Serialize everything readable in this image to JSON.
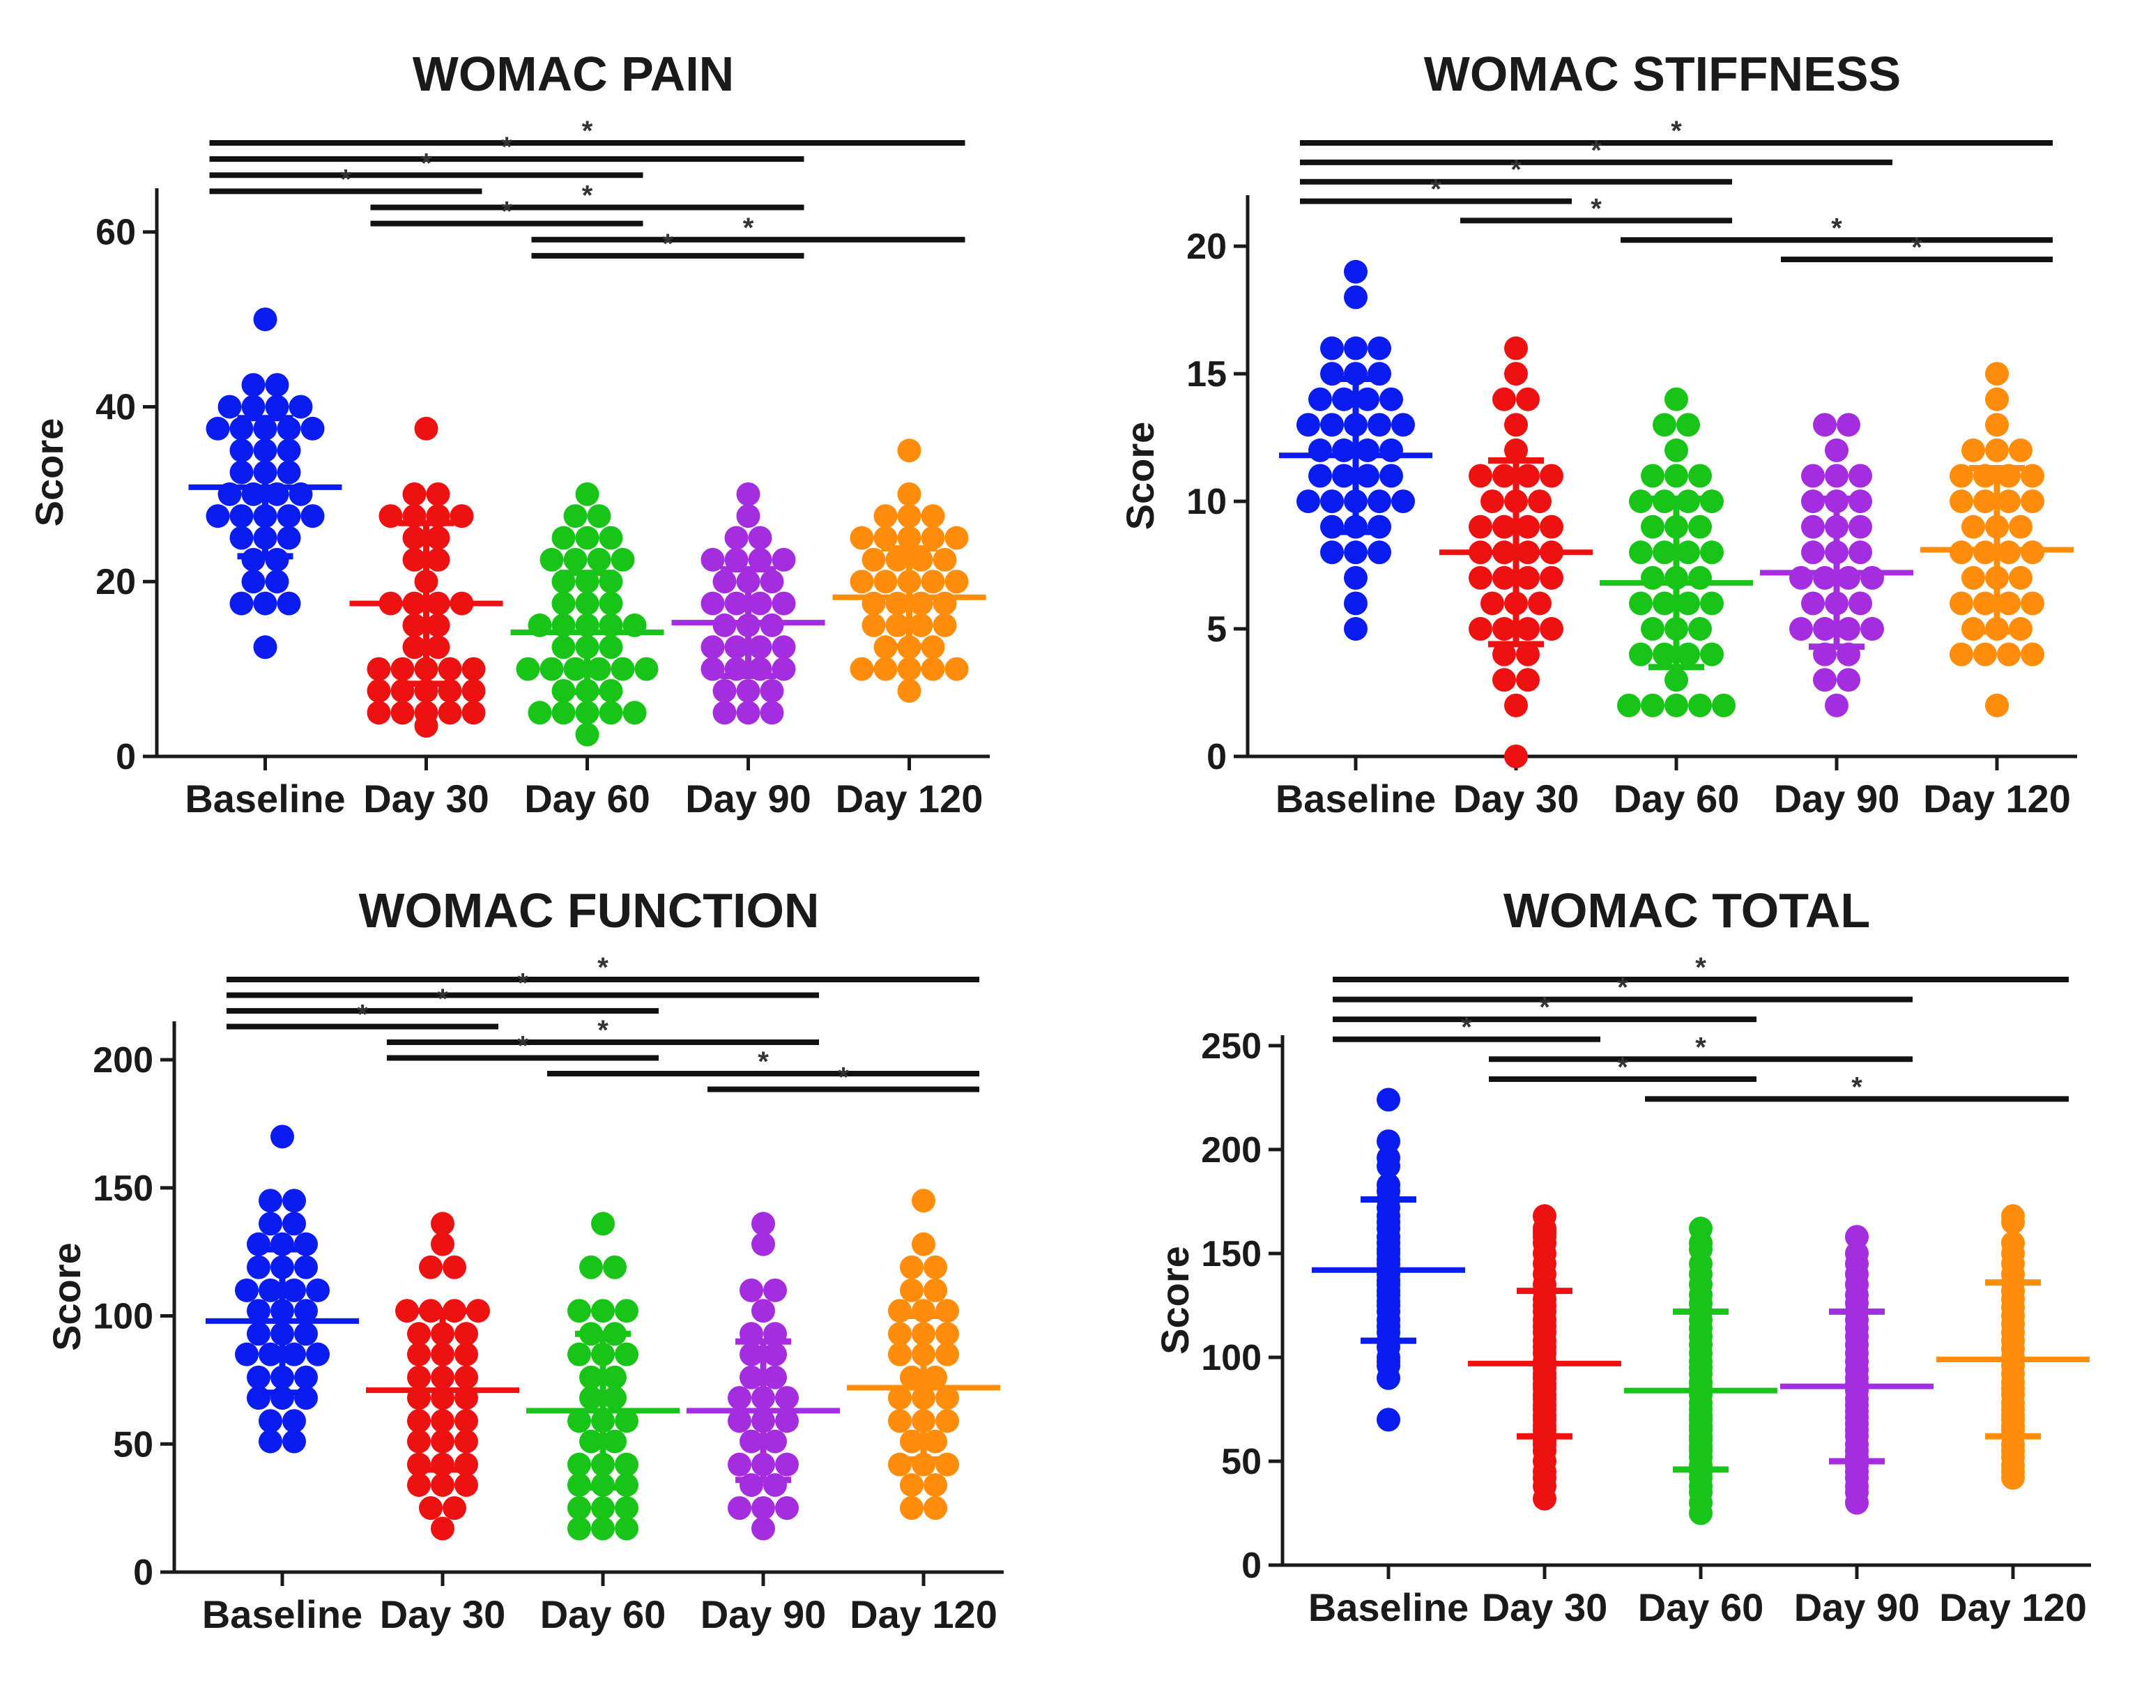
{
  "chart_data": [
    {
      "type": "scatter",
      "title": "WOMAC PAIN",
      "ylabel": "Score",
      "categories": [
        "Baseline",
        "Day 30",
        "Day 60",
        "Day 90",
        "Day 120"
      ],
      "ylim": [
        0,
        65
      ],
      "yticks": [
        "0",
        "20",
        "40",
        "60"
      ],
      "colors": [
        "#0a1cf0",
        "#ee1111",
        "#19c419",
        "#a52de0",
        "#ff8c0a"
      ],
      "means": [
        30.8,
        17.5,
        14.2,
        15.3,
        18.2
      ],
      "sd": [
        7.9,
        9.2,
        6.8,
        6.1,
        5.6
      ],
      "points": [
        [
          50,
          42.5,
          42.5,
          40,
          40,
          40,
          40,
          37.5,
          37.5,
          37.5,
          37.5,
          37.5,
          35,
          35,
          35,
          32.5,
          32.5,
          32.5,
          30,
          30,
          30,
          30,
          27.5,
          27.5,
          27.5,
          27.5,
          27.5,
          25,
          25,
          25,
          22.5,
          22.5,
          20,
          20,
          17.5,
          17.5,
          17.5,
          12.5
        ],
        [
          37.5,
          30,
          30,
          27.5,
          27.5,
          27.5,
          27.5,
          25,
          25,
          22.5,
          22.5,
          20,
          17.5,
          17.5,
          17.5,
          17.5,
          15,
          15,
          12.5,
          12.5,
          10,
          10,
          10,
          10,
          10,
          7.5,
          7.5,
          7.5,
          7.5,
          7.5,
          5,
          5,
          5,
          5,
          5,
          3.5
        ],
        [
          30,
          27.5,
          27.5,
          25,
          25,
          25,
          22.5,
          22.5,
          22.5,
          22.5,
          20,
          20,
          20,
          17.5,
          17.5,
          17.5,
          15,
          15,
          15,
          15,
          15,
          12.5,
          12.5,
          12.5,
          10,
          10,
          10,
          10,
          10,
          10,
          7.5,
          7.5,
          7.5,
          5,
          5,
          5,
          5,
          5,
          2.5
        ],
        [
          30,
          27.5,
          25,
          25,
          22.5,
          22.5,
          22.5,
          22.5,
          20,
          20,
          20,
          17.5,
          17.5,
          17.5,
          17.5,
          15,
          15,
          15,
          12.5,
          12.5,
          12.5,
          12.5,
          10,
          10,
          10,
          10,
          7.5,
          7.5,
          7.5,
          5,
          5,
          5
        ],
        [
          35,
          30,
          27.5,
          27.5,
          27.5,
          25,
          25,
          25,
          25,
          25,
          22.5,
          22.5,
          22.5,
          22.5,
          20,
          20,
          20,
          20,
          20,
          17.5,
          17.5,
          17.5,
          17.5,
          15,
          15,
          15,
          15,
          12.5,
          12.5,
          12.5,
          10,
          10,
          10,
          10,
          10,
          7.5
        ]
      ],
      "brackets": [
        [
          0,
          4
        ],
        [
          0,
          3
        ],
        [
          0,
          2
        ],
        [
          0,
          1
        ],
        [
          1,
          3
        ],
        [
          1,
          2
        ],
        [
          2,
          4
        ],
        [
          2,
          3
        ]
      ],
      "significance": "*"
    },
    {
      "type": "scatter",
      "title": "WOMAC STIFFNESS",
      "ylabel": "Score",
      "categories": [
        "Baseline",
        "Day 30",
        "Day 60",
        "Day 90",
        "Day 120"
      ],
      "ylim": [
        0,
        22
      ],
      "yticks": [
        "0",
        "5",
        "10",
        "15",
        "20"
      ],
      "colors": [
        "#0a1cf0",
        "#ee1111",
        "#19c419",
        "#a52de0",
        "#ff8c0a"
      ],
      "means": [
        11.8,
        8,
        6.8,
        7.2,
        8.1
      ],
      "sd": [
        3.0,
        3.6,
        3.3,
        2.9,
        3.2
      ],
      "points": [
        [
          19,
          18,
          16,
          16,
          16,
          15,
          15,
          15,
          14,
          14,
          14,
          14,
          13,
          13,
          13,
          13,
          13,
          12,
          12,
          12,
          12,
          11,
          11,
          11,
          11,
          10,
          10,
          10,
          10,
          10,
          9,
          9,
          9,
          8,
          8,
          8,
          7,
          6,
          5
        ],
        [
          16,
          15,
          14,
          14,
          13,
          12,
          11,
          11,
          11,
          11,
          10,
          10,
          10,
          9,
          9,
          9,
          9,
          8,
          8,
          8,
          8,
          7,
          7,
          7,
          7,
          6,
          6,
          6,
          5,
          5,
          5,
          5,
          4,
          4,
          3,
          3,
          2,
          0
        ],
        [
          14,
          13,
          13,
          12,
          11,
          11,
          11,
          10,
          10,
          10,
          10,
          9,
          9,
          9,
          8,
          8,
          8,
          8,
          7,
          7,
          7,
          6,
          6,
          6,
          6,
          5,
          5,
          5,
          4,
          4,
          4,
          4,
          3,
          2,
          2,
          2,
          2,
          2
        ],
        [
          13,
          13,
          12,
          11,
          11,
          11,
          10,
          10,
          10,
          9,
          9,
          9,
          8,
          8,
          8,
          7,
          7,
          7,
          7,
          6,
          6,
          6,
          5,
          5,
          5,
          5,
          4,
          4,
          3,
          3,
          2
        ],
        [
          15,
          14,
          13,
          12,
          12,
          12,
          11,
          11,
          11,
          11,
          10,
          10,
          10,
          10,
          9,
          9,
          9,
          8,
          8,
          8,
          8,
          7,
          7,
          7,
          6,
          6,
          6,
          6,
          5,
          5,
          5,
          4,
          4,
          4,
          4,
          2
        ]
      ],
      "brackets": [
        [
          0,
          4
        ],
        [
          0,
          3
        ],
        [
          0,
          2
        ],
        [
          0,
          1
        ],
        [
          1,
          2
        ],
        [
          2,
          4
        ],
        [
          3,
          4
        ]
      ],
      "significance": "*"
    },
    {
      "type": "scatter",
      "title": "WOMAC FUNCTION",
      "ylabel": "Score",
      "categories": [
        "Baseline",
        "Day 30",
        "Day 60",
        "Day 90",
        "Day 120"
      ],
      "ylim": [
        0,
        215
      ],
      "yticks": [
        "0",
        "50",
        "100",
        "150",
        "200"
      ],
      "colors": [
        "#0a1cf0",
        "#ee1111",
        "#19c419",
        "#a52de0",
        "#ff8c0a"
      ],
      "means": [
        98,
        71,
        63,
        63,
        72
      ],
      "sd": [
        28,
        31,
        30,
        27,
        28
      ],
      "points": [
        [
          170,
          145,
          145,
          136,
          136,
          128,
          128,
          128,
          119,
          119,
          119,
          110,
          110,
          110,
          110,
          102,
          102,
          102,
          93,
          93,
          93,
          85,
          85,
          85,
          85,
          76,
          76,
          76,
          68,
          68,
          68,
          59,
          59,
          51,
          51
        ],
        [
          136,
          128,
          119,
          119,
          102,
          102,
          102,
          102,
          93,
          93,
          93,
          85,
          85,
          85,
          76,
          76,
          76,
          68,
          68,
          68,
          59,
          59,
          59,
          51,
          51,
          51,
          42,
          42,
          42,
          34,
          34,
          34,
          25,
          25,
          17
        ],
        [
          136,
          119,
          119,
          102,
          102,
          102,
          93,
          93,
          85,
          85,
          85,
          76,
          76,
          68,
          68,
          59,
          59,
          59,
          51,
          51,
          42,
          42,
          42,
          34,
          34,
          34,
          25,
          25,
          25,
          17,
          17,
          17
        ],
        [
          136,
          128,
          110,
          110,
          102,
          93,
          93,
          85,
          85,
          76,
          76,
          68,
          68,
          68,
          59,
          59,
          59,
          51,
          51,
          42,
          42,
          42,
          34,
          34,
          25,
          25,
          25,
          17
        ],
        [
          145,
          128,
          119,
          119,
          110,
          110,
          102,
          102,
          102,
          93,
          93,
          93,
          85,
          85,
          85,
          76,
          76,
          68,
          68,
          68,
          59,
          59,
          59,
          51,
          51,
          42,
          42,
          42,
          34,
          34,
          25,
          25
        ]
      ],
      "brackets": [
        [
          0,
          4
        ],
        [
          0,
          3
        ],
        [
          0,
          2
        ],
        [
          0,
          1
        ],
        [
          1,
          3
        ],
        [
          1,
          2
        ],
        [
          2,
          4
        ],
        [
          3,
          4
        ]
      ],
      "significance": "*"
    },
    {
      "type": "scatter",
      "title": "WOMAC TOTAL",
      "ylabel": "Score",
      "categories": [
        "Baseline",
        "Day 30",
        "Day 60",
        "Day 90",
        "Day 120"
      ],
      "ylim": [
        0,
        255
      ],
      "yticks": [
        "0",
        "50",
        "100",
        "150",
        "200",
        "250"
      ],
      "colors": [
        "#0a1cf0",
        "#ee1111",
        "#19c419",
        "#a52de0",
        "#ff8c0a"
      ],
      "means": [
        142,
        97,
        84,
        86,
        99
      ],
      "sd": [
        34,
        35,
        38,
        36,
        37
      ],
      "points": [
        [
          224,
          204,
          196,
          192,
          183,
          180,
          176,
          172,
          168,
          165,
          162,
          158,
          155,
          152,
          150,
          147,
          145,
          142,
          140,
          137,
          135,
          132,
          130,
          127,
          125,
          122,
          118,
          115,
          112,
          108,
          105,
          100,
          98,
          96,
          90,
          70
        ],
        [
          168,
          162,
          160,
          158,
          155,
          150,
          145,
          140,
          135,
          132,
          128,
          125,
          122,
          118,
          115,
          112,
          108,
          105,
          102,
          98,
          95,
          92,
          90,
          87,
          85,
          82,
          80,
          77,
          75,
          72,
          70,
          67,
          65,
          62,
          60,
          58,
          55,
          50,
          45,
          42,
          38,
          32
        ],
        [
          162,
          155,
          152,
          145,
          140,
          135,
          130,
          126,
          122,
          118,
          114,
          110,
          106,
          102,
          98,
          95,
          92,
          88,
          85,
          82,
          78,
          75,
          72,
          70,
          67,
          65,
          62,
          60,
          57,
          55,
          52,
          48,
          45,
          42,
          38,
          35,
          30,
          25
        ],
        [
          158,
          150,
          145,
          140,
          135,
          130,
          126,
          122,
          118,
          114,
          110,
          106,
          102,
          98,
          94,
          90,
          87,
          84,
          80,
          77,
          74,
          71,
          68,
          65,
          62,
          58,
          55,
          52,
          48,
          45,
          42,
          38,
          35,
          30
        ],
        [
          168,
          165,
          155,
          150,
          145,
          140,
          136,
          132,
          128,
          124,
          120,
          116,
          112,
          108,
          104,
          100,
          96,
          92,
          88,
          85,
          82,
          78,
          75,
          72,
          70,
          67,
          65,
          62,
          58,
          55,
          52,
          48,
          45,
          42
        ]
      ],
      "brackets": [
        [
          0,
          4
        ],
        [
          0,
          3
        ],
        [
          0,
          2
        ],
        [
          0,
          1
        ],
        [
          1,
          3
        ],
        [
          1,
          2
        ],
        [
          2,
          4
        ]
      ],
      "significance": "*"
    }
  ]
}
